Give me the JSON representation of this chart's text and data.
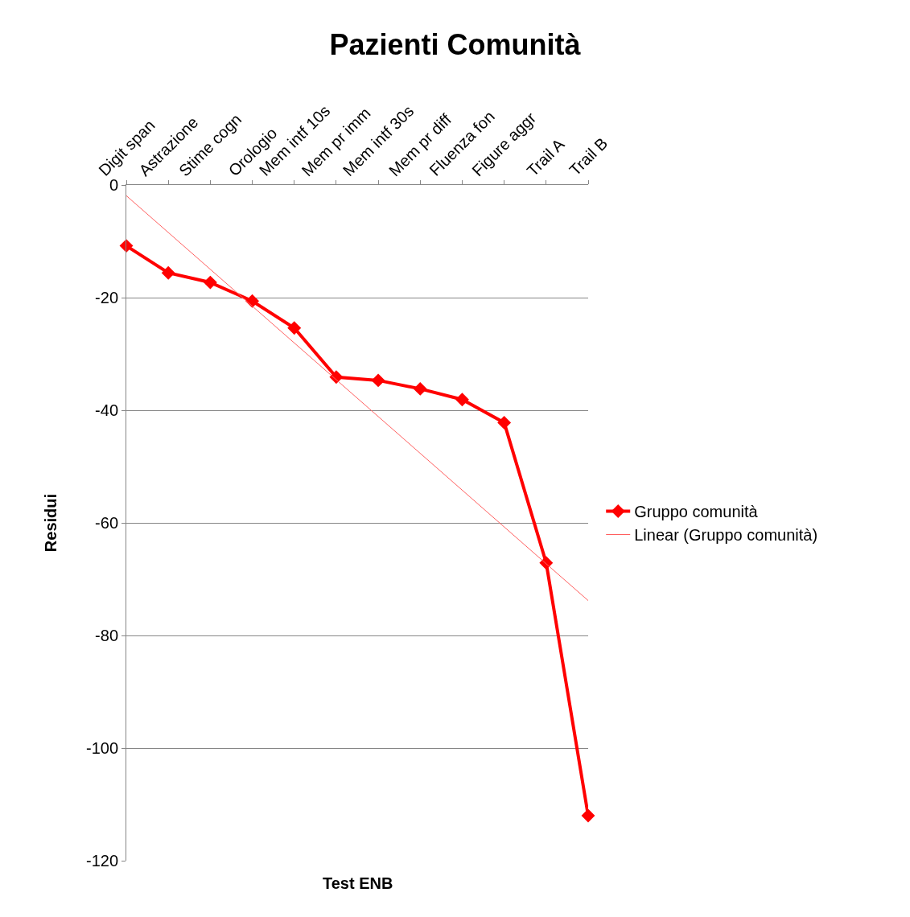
{
  "chart_data": {
    "type": "line",
    "title": "Pazienti Comunità",
    "xlabel": "Test ENB",
    "ylabel": "Residui",
    "categories": [
      "Digit span",
      "Astrazione",
      "Stime cogn",
      "Orologio",
      "Mem intf 10s",
      "Mem pr imm",
      "Mem intf 30s",
      "Mem pr diff",
      "Fluenza fon",
      "Figure aggr",
      "Trail A",
      "Trail B"
    ],
    "series": [
      {
        "name": "Gruppo comunità",
        "color": "#ff0000",
        "marker": "diamond",
        "line_style": "solid",
        "values": [
          -10.8,
          -15.6,
          -17.3,
          -20.6,
          -25.4,
          -34.1,
          -34.7,
          -36.2,
          -38.1,
          -42.2,
          -67.1,
          -112.0
        ]
      },
      {
        "name": "Linear (Gruppo comunità)",
        "color": "#ff6060",
        "marker": "none",
        "line_style": "solid",
        "x": [
          "Digit span",
          "Trail B"
        ],
        "values": [
          -1.9,
          -73.8
        ]
      }
    ],
    "ylim": [
      -120,
      0
    ],
    "yticks": [
      -120,
      -100,
      -80,
      -60,
      -40,
      -20,
      0
    ],
    "grid": "y",
    "legend": "right"
  }
}
